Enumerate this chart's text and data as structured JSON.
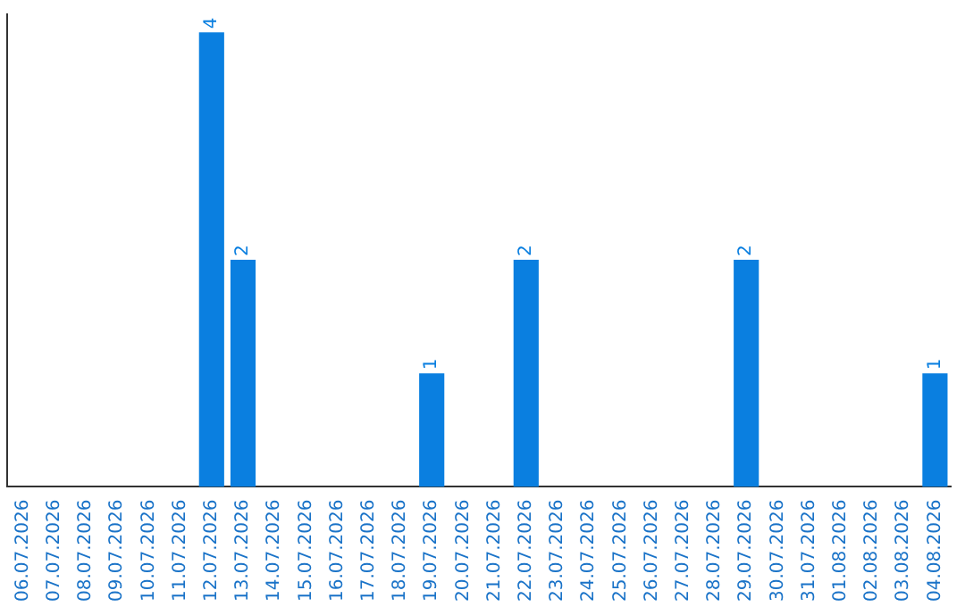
{
  "chart_data": {
    "type": "bar",
    "categories": [
      "06.07.2026",
      "07.07.2026",
      "08.07.2026",
      "09.07.2026",
      "10.07.2026",
      "11.07.2026",
      "12.07.2026",
      "13.07.2026",
      "14.07.2026",
      "15.07.2026",
      "16.07.2026",
      "17.07.2026",
      "18.07.2026",
      "19.07.2026",
      "20.07.2026",
      "21.07.2026",
      "22.07.2026",
      "23.07.2026",
      "24.07.2026",
      "25.07.2026",
      "26.07.2026",
      "27.07.2026",
      "28.07.2026",
      "29.07.2026",
      "30.07.2026",
      "31.07.2026",
      "01.08.2026",
      "02.08.2026",
      "03.08.2026",
      "04.08.2026"
    ],
    "values": [
      0,
      0,
      0,
      0,
      0,
      0,
      4,
      2,
      0,
      0,
      0,
      0,
      0,
      1,
      0,
      0,
      2,
      0,
      0,
      0,
      0,
      0,
      0,
      2,
      0,
      0,
      0,
      0,
      0,
      1
    ],
    "value_labels": [
      null,
      null,
      null,
      null,
      null,
      null,
      "4",
      "2",
      null,
      null,
      null,
      null,
      null,
      "1",
      null,
      null,
      "2",
      null,
      null,
      null,
      null,
      null,
      null,
      "2",
      null,
      null,
      null,
      null,
      null,
      "1"
    ],
    "color": "#0a7fe0",
    "tick_labels": "x",
    "grid": false,
    "legend": false
  }
}
